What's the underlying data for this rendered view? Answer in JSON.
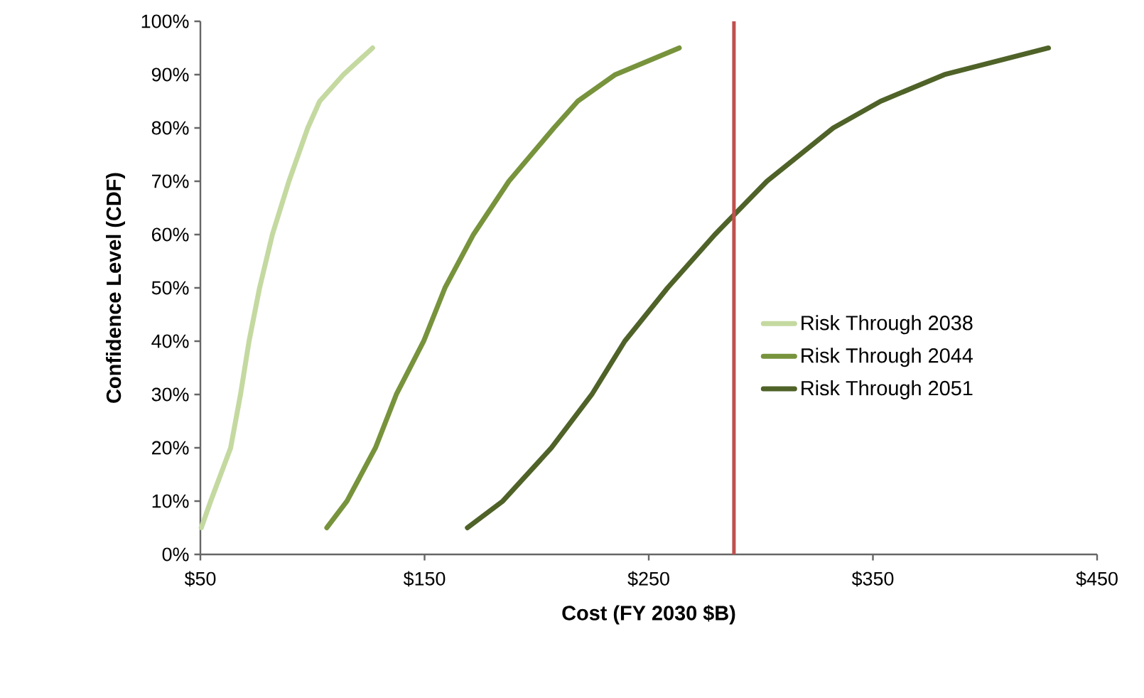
{
  "chart_data": {
    "type": "line",
    "xlabel": "Cost (FY 2030 $B)",
    "ylabel": "Confidence Level (CDF)",
    "xlim": [
      50,
      450
    ],
    "ylim": [
      0,
      100
    ],
    "xticks": [
      {
        "value": 50,
        "label": "$50"
      },
      {
        "value": 150,
        "label": "$150"
      },
      {
        "value": 250,
        "label": "$250"
      },
      {
        "value": 350,
        "label": "$350"
      },
      {
        "value": 450,
        "label": "$450"
      }
    ],
    "yticks": [
      {
        "value": 0,
        "label": "0%"
      },
      {
        "value": 10,
        "label": "10%"
      },
      {
        "value": 20,
        "label": "20%"
      },
      {
        "value": 30,
        "label": "30%"
      },
      {
        "value": 40,
        "label": "40%"
      },
      {
        "value": 50,
        "label": "50%"
      },
      {
        "value": 60,
        "label": "60%"
      },
      {
        "value": 70,
        "label": "70%"
      },
      {
        "value": 80,
        "label": "80%"
      },
      {
        "value": 90,
        "label": "90%"
      },
      {
        "value": 100,
        "label": "100%"
      }
    ],
    "grid": false,
    "legend": "right",
    "marker": "none",
    "line_style": "solid",
    "series": [
      {
        "name": "Risk Through 2038",
        "color": "#c4d9a0",
        "x": [
          50.4,
          54.6,
          63.5,
          67.9,
          71.7,
          76.4,
          82.1,
          89.5,
          97.9,
          103.2,
          113.8,
          126.8
        ],
        "values": [
          5,
          10,
          20,
          30,
          40,
          50,
          60,
          70,
          80,
          85,
          90,
          95
        ]
      },
      {
        "name": "Risk Through 2044",
        "color": "#77933c",
        "x": [
          106.4,
          115.4,
          128.1,
          137.4,
          149.6,
          159.1,
          171.8,
          187.6,
          207.7,
          218.3,
          235.1,
          263.6
        ],
        "values": [
          5,
          10,
          20,
          30,
          40,
          50,
          60,
          70,
          80,
          85,
          90,
          95
        ]
      },
      {
        "name": "Risk Through 2051",
        "color": "#4f6228",
        "x": [
          169.1,
          184.9,
          206.6,
          224.6,
          239.3,
          258.4,
          279.5,
          302.7,
          332.3,
          353.4,
          381.9,
          428.3
        ],
        "values": [
          5,
          10,
          20,
          30,
          40,
          50,
          60,
          70,
          80,
          85,
          90,
          95
        ]
      }
    ],
    "ref_lines": [
      {
        "axis": "x",
        "value": 288,
        "color": "#c0504d"
      }
    ]
  }
}
